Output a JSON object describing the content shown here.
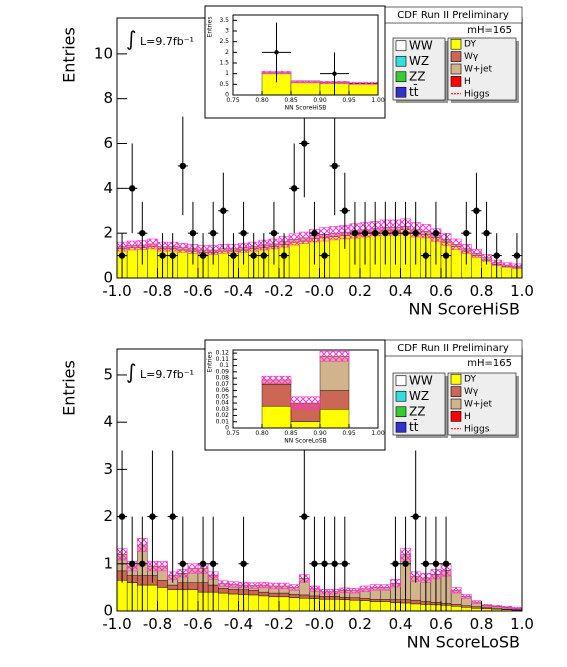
{
  "chart_data": [
    {
      "type": "histogram",
      "experiment": "CDF Run II Preliminary",
      "mass": "mH=165",
      "integral": "∫",
      "lumi": "L=9.7fb⁻¹",
      "ylabel": "Entries",
      "xlabel": "NN ScoreHiSB",
      "xlim": [
        -1,
        1
      ],
      "ylim": [
        0,
        11.6
      ],
      "xticks": [
        {
          "value": -1,
          "label": "-1.0"
        },
        {
          "value": -0.8,
          "label": "-0.8"
        },
        {
          "value": -0.6,
          "label": "-0.6"
        },
        {
          "value": -0.4,
          "label": "-0.4"
        },
        {
          "value": -0.2,
          "label": "-0.2"
        },
        {
          "value": 0,
          "label": "-0.0"
        },
        {
          "value": 0.2,
          "label": "0.2"
        },
        {
          "value": 0.4,
          "label": "0.4"
        },
        {
          "value": 0.6,
          "label": "0.6"
        },
        {
          "value": 0.8,
          "label": "0.8"
        },
        {
          "value": 1,
          "label": "1.0"
        }
      ],
      "yticks": [
        0,
        2,
        4,
        6,
        8,
        10
      ],
      "bins": [
        -1,
        -0.95,
        -0.9,
        -0.85,
        -0.8,
        -0.75,
        -0.7,
        -0.65,
        -0.6,
        -0.55,
        -0.5,
        -0.45,
        -0.4,
        -0.35,
        -0.3,
        -0.25,
        -0.2,
        -0.15,
        -0.1,
        -0.05,
        0,
        0.05,
        0.1,
        0.15,
        0.2,
        0.25,
        0.3,
        0.35,
        0.4,
        0.45,
        0.5,
        0.55,
        0.6,
        0.65,
        0.7,
        0.75,
        0.8,
        0.85,
        0.9,
        0.95,
        1
      ],
      "series": [
        {
          "name": "WW",
          "color": "#ffffff"
        },
        {
          "name": "WZ",
          "color": "#33dddd"
        },
        {
          "name": "ZZ",
          "color": "#33cc33"
        },
        {
          "name": "tt̄",
          "color": "#3333cc"
        },
        {
          "name": "DY",
          "color": "#ffff00",
          "values": [
            1.3,
            1.35,
            1.35,
            1.4,
            1.3,
            1.3,
            1.25,
            1.2,
            1.15,
            1.15,
            1.2,
            1.2,
            1.25,
            1.3,
            1.35,
            1.4,
            1.5,
            1.6,
            1.65,
            1.75,
            1.8,
            1.85,
            1.9,
            1.95,
            2.0,
            2.05,
            2.1,
            2.1,
            2.15,
            2.0,
            1.95,
            1.8,
            1.6,
            1.4,
            1.2,
            1.0,
            0.8,
            0.6,
            0.5,
            0.45
          ]
        },
        {
          "name": "Wγ",
          "color": "#cc6655"
        },
        {
          "name": "W+jet",
          "color": "#d2b48c",
          "values": [
            0.1,
            0.1,
            0.12,
            0.12,
            0.1,
            0.1,
            0.1,
            0.1,
            0.1,
            0.1,
            0.1,
            0.1,
            0.1,
            0.1,
            0.12,
            0.12,
            0.12,
            0.12,
            0.14,
            0.14,
            0.15,
            0.15,
            0.15,
            0.15,
            0.15,
            0.15,
            0.15,
            0.15,
            0.15,
            0.15,
            0.14,
            0.12,
            0.12,
            0.1,
            0.1,
            0.1,
            0.1,
            0.08,
            0.08,
            0.08
          ]
        },
        {
          "name": "H",
          "color": "#ff0000"
        },
        {
          "name": "Higgs",
          "color": "#ff0000",
          "style": "line"
        }
      ],
      "uncertainty": [
        0.2,
        0.2,
        0.2,
        0.22,
        0.2,
        0.2,
        0.2,
        0.2,
        0.2,
        0.2,
        0.2,
        0.2,
        0.2,
        0.2,
        0.22,
        0.22,
        0.24,
        0.25,
        0.26,
        0.28,
        0.3,
        0.3,
        0.3,
        0.32,
        0.32,
        0.32,
        0.34,
        0.34,
        0.34,
        0.32,
        0.3,
        0.28,
        0.26,
        0.24,
        0.2,
        0.18,
        0.15,
        0.12,
        0.1,
        0.1
      ],
      "data": {
        "values": [
          1,
          4,
          2,
          null,
          1,
          1,
          5,
          2,
          1,
          2,
          3,
          1,
          2,
          1,
          1,
          2,
          1,
          4,
          6,
          2,
          1,
          5,
          3,
          2,
          2,
          2,
          2,
          2,
          2,
          2,
          1,
          2,
          1,
          null,
          2,
          3,
          2,
          1,
          null,
          1
        ],
        "errors": [
          1,
          2,
          1.4,
          null,
          1,
          1,
          2.2,
          1.4,
          1,
          1.4,
          1.7,
          1,
          1.4,
          1,
          1,
          1.4,
          1,
          2,
          2.4,
          1.4,
          1,
          2.2,
          1.7,
          1.4,
          1.4,
          1.4,
          1.4,
          1.4,
          1.4,
          1.4,
          1,
          1.4,
          1,
          null,
          1.4,
          1.7,
          1.4,
          1,
          null,
          1
        ]
      },
      "inset": {
        "ylabel": "Entries",
        "xlabel": "NN ScoreHiSB",
        "xlim": [
          0.75,
          1
        ],
        "ylim": [
          0,
          3.75
        ],
        "xticks": [
          {
            "value": 0.75,
            "label": "0.75"
          },
          {
            "value": 0.8,
            "label": "0.80"
          },
          {
            "value": 0.85,
            "label": "0.85"
          },
          {
            "value": 0.9,
            "label": "0.90"
          },
          {
            "value": 0.95,
            "label": "0.95"
          },
          {
            "value": 1,
            "label": "1.00"
          }
        ],
        "yticks": [
          0,
          0.5,
          1,
          1.5,
          2,
          2.5,
          3,
          3.5
        ],
        "bins": [
          0.75,
          0.8,
          0.85,
          0.9,
          0.95,
          1.0
        ],
        "series": [
          {
            "name": "DY",
            "color": "#ffff00",
            "values": [
              null,
              1.0,
              0.58,
              0.55,
              0.52
            ]
          },
          {
            "name": "W+jet",
            "color": "#d2b48c",
            "values": [
              null,
              0.05,
              0.04,
              0.04,
              0.03
            ]
          }
        ],
        "uncertainty": [
          null,
          0.06,
          0.05,
          0.05,
          0.05
        ],
        "data": {
          "values": [
            null,
            2,
            null,
            1,
            null
          ],
          "errors": [
            null,
            1.4,
            null,
            1,
            null
          ]
        }
      }
    },
    {
      "type": "histogram",
      "experiment": "CDF Run II Preliminary",
      "mass": "mH=165",
      "integral": "∫",
      "lumi": "L=9.7fb⁻¹",
      "ylabel": "Entries",
      "xlabel": "NN ScoreLoSB",
      "xlim": [
        -1,
        1
      ],
      "ylim": [
        0,
        5.55
      ],
      "xticks": [
        {
          "value": -1,
          "label": "-1.0"
        },
        {
          "value": -0.8,
          "label": "-0.8"
        },
        {
          "value": -0.6,
          "label": "-0.6"
        },
        {
          "value": -0.4,
          "label": "-0.4"
        },
        {
          "value": -0.2,
          "label": "-0.2"
        },
        {
          "value": 0,
          "label": "-0.0"
        },
        {
          "value": 0.2,
          "label": "0.2"
        },
        {
          "value": 0.4,
          "label": "0.4"
        },
        {
          "value": 0.6,
          "label": "0.6"
        },
        {
          "value": 0.8,
          "label": "0.8"
        },
        {
          "value": 1,
          "label": "1.0"
        }
      ],
      "yticks": [
        0,
        1,
        2,
        3,
        4,
        5
      ],
      "bins": [
        -1,
        -0.95,
        -0.9,
        -0.85,
        -0.8,
        -0.75,
        -0.7,
        -0.65,
        -0.6,
        -0.55,
        -0.5,
        -0.45,
        -0.4,
        -0.35,
        -0.3,
        -0.25,
        -0.2,
        -0.15,
        -0.1,
        -0.05,
        0,
        0.05,
        0.1,
        0.15,
        0.2,
        0.25,
        0.3,
        0.35,
        0.4,
        0.45,
        0.5,
        0.55,
        0.6,
        0.65,
        0.7,
        0.75,
        0.8,
        0.85,
        0.9,
        0.95,
        1
      ],
      "series": [
        {
          "name": "WW",
          "color": "#ffffff"
        },
        {
          "name": "WZ",
          "color": "#33dddd"
        },
        {
          "name": "ZZ",
          "color": "#33cc33"
        },
        {
          "name": "tt̄",
          "color": "#3333cc"
        },
        {
          "name": "DY",
          "color": "#ffff00",
          "values": [
            0.65,
            0.6,
            0.55,
            0.55,
            0.5,
            0.45,
            0.45,
            0.45,
            0.4,
            0.4,
            0.38,
            0.36,
            0.35,
            0.34,
            0.32,
            0.3,
            0.3,
            0.28,
            0.27,
            0.26,
            0.25,
            0.25,
            0.24,
            0.23,
            0.22,
            0.2,
            0.2,
            0.18,
            0.17,
            0.15,
            0.14,
            0.13,
            0.12,
            0.1,
            0.08,
            0.06,
            0.05,
            0.04,
            0.03,
            0.02
          ]
        },
        {
          "name": "Wγ",
          "color": "#cc6655",
          "values": [
            0.2,
            0.15,
            0.2,
            0.2,
            0.15,
            0.1,
            0.15,
            0.15,
            0.2,
            0.15,
            0.1,
            0.1,
            0.1,
            0.1,
            0.08,
            0.08,
            0.08,
            0.07,
            0.07,
            0.06,
            0.06,
            0.06,
            0.05,
            0.05,
            0.05,
            0.05,
            0.05,
            0.06,
            0.07,
            0.08,
            0.06,
            0.05,
            0.04,
            0.04,
            0.03,
            0.03,
            0.02,
            0.01,
            0.01,
            0.01
          ]
        },
        {
          "name": "W+jet",
          "color": "#d2b48c",
          "values": [
            0.35,
            0.2,
            0.65,
            0.2,
            0.3,
            0.2,
            0.2,
            0.3,
            0.3,
            0.2,
            0.1,
            0.1,
            0.1,
            0.1,
            0.15,
            0.15,
            0.15,
            0.15,
            0.35,
            0.15,
            0.1,
            0.1,
            0.15,
            0.15,
            0.2,
            0.25,
            0.25,
            0.35,
            0.95,
            0.5,
            0.5,
            0.6,
            0.7,
            0.3,
            0.2,
            0.1,
            0.05,
            0.05,
            0.04,
            0.03
          ]
        },
        {
          "name": "H",
          "color": "#ff0000"
        },
        {
          "name": "Higgs",
          "color": "#ff0000",
          "style": "line"
        }
      ],
      "uncertainty": [
        0.12,
        0.1,
        0.14,
        0.1,
        0.1,
        0.08,
        0.08,
        0.1,
        0.1,
        0.08,
        0.06,
        0.06,
        0.06,
        0.06,
        0.06,
        0.06,
        0.06,
        0.06,
        0.08,
        0.06,
        0.05,
        0.05,
        0.05,
        0.05,
        0.06,
        0.06,
        0.06,
        0.08,
        0.14,
        0.1,
        0.1,
        0.1,
        0.12,
        0.06,
        0.04,
        0.03,
        0.02,
        0.02,
        0.02,
        0.02
      ],
      "data": {
        "values": [
          2,
          1,
          1,
          2,
          null,
          2,
          1,
          null,
          1,
          1,
          null,
          null,
          1,
          null,
          null,
          null,
          null,
          null,
          2,
          1,
          1,
          1,
          1,
          null,
          null,
          null,
          null,
          1,
          1,
          2,
          1,
          1,
          1,
          null,
          null,
          null,
          null,
          null,
          null,
          null
        ],
        "errors": [
          1.4,
          1,
          1,
          1.4,
          null,
          1.4,
          1,
          null,
          1,
          1,
          null,
          null,
          1,
          null,
          null,
          null,
          null,
          null,
          1.4,
          1,
          1,
          1,
          1,
          null,
          null,
          null,
          null,
          1,
          1,
          1.4,
          1,
          1,
          1,
          null,
          null,
          null,
          null,
          null,
          null,
          null
        ]
      },
      "inset": {
        "ylabel": "Entries",
        "xlabel": "NN ScoreLoSB",
        "xlim": [
          0.75,
          1
        ],
        "ylim": [
          0,
          0.125
        ],
        "xticks": [
          {
            "value": 0.75,
            "label": "0.75"
          },
          {
            "value": 0.8,
            "label": "0.80"
          },
          {
            "value": 0.85,
            "label": "0.85"
          },
          {
            "value": 0.9,
            "label": "0.90"
          },
          {
            "value": 0.95,
            "label": "0.95"
          },
          {
            "value": 1,
            "label": "1.00"
          }
        ],
        "yticks": [
          0,
          0.01,
          0.02,
          0.03,
          0.04,
          0.05,
          0.06,
          0.07,
          0.08,
          0.09,
          0.1,
          0.11,
          0.12
        ],
        "bins": [
          0.75,
          0.8,
          0.85,
          0.9,
          0.95,
          1.0
        ],
        "series": [
          {
            "name": "DY",
            "color": "#ffff00",
            "values": [
              null,
              0.035,
              0.01,
              0.03,
              null
            ]
          },
          {
            "name": "Wγ",
            "color": "#cc6655",
            "values": [
              null,
              0.035,
              0.03,
              0.03,
              null
            ]
          },
          {
            "name": "W+jet",
            "color": "#d2b48c",
            "values": [
              null,
              0.007,
              0.0,
              0.055,
              null
            ]
          }
        ],
        "uncertainty": [
          null,
          0.006,
          0.01,
          0.008,
          null
        ],
        "data": {
          "values": [
            null,
            null,
            null,
            null,
            null
          ],
          "errors": [
            null,
            null,
            null,
            null,
            null
          ]
        }
      }
    }
  ]
}
